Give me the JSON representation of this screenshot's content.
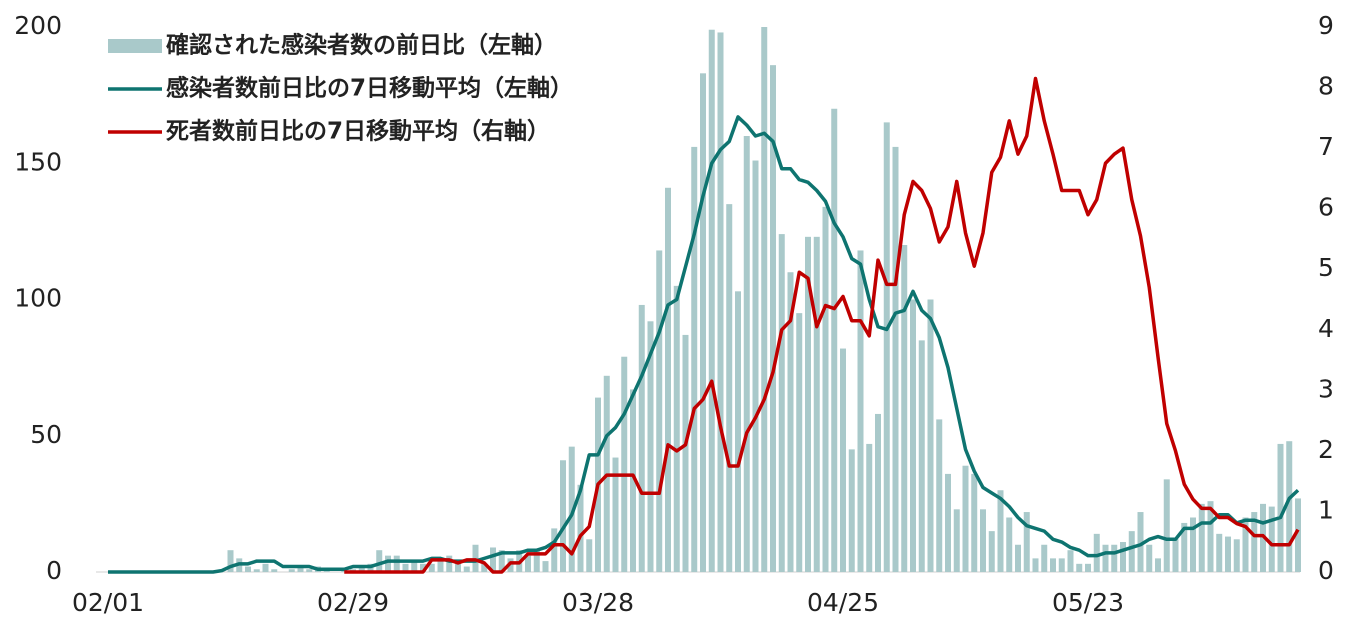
{
  "chart_data": {
    "type": "bar",
    "categories": [
      "02/01",
      null,
      null,
      null,
      null,
      null,
      null,
      null,
      null,
      null,
      null,
      null,
      null,
      null,
      null,
      null,
      null,
      null,
      null,
      null,
      null,
      null,
      null,
      null,
      null,
      null,
      null,
      null,
      "02/29",
      null,
      null,
      null,
      null,
      null,
      null,
      null,
      null,
      null,
      null,
      null,
      null,
      null,
      null,
      null,
      null,
      null,
      null,
      null,
      null,
      null,
      null,
      null,
      null,
      null,
      null,
      null,
      "03/28",
      null,
      null,
      null,
      null,
      null,
      null,
      null,
      null,
      null,
      null,
      null,
      null,
      null,
      null,
      null,
      null,
      null,
      null,
      null,
      null,
      null,
      null,
      null,
      null,
      null,
      null,
      null,
      "04/25",
      null,
      null,
      null,
      null,
      null,
      null,
      null,
      null,
      null,
      null,
      null,
      null,
      null,
      null,
      null,
      null,
      null,
      null,
      null,
      null,
      null,
      null,
      null,
      null,
      null,
      null,
      null,
      "05/23",
      null,
      null,
      null,
      null,
      null,
      null,
      null,
      null,
      null,
      null,
      null,
      null,
      null,
      null,
      null,
      null,
      null,
      null,
      null,
      null,
      null,
      null,
      null,
      null
    ],
    "series": [
      {
        "name": "確認された感染者数の前日比（左軸）",
        "type": "bar",
        "color": "#a9c9ca",
        "values": [
          0,
          0,
          0,
          0,
          0,
          0,
          0,
          0,
          0,
          0,
          0,
          0,
          0,
          0,
          8,
          5,
          2,
          1,
          3,
          1,
          0,
          1,
          2,
          1,
          2,
          1,
          0,
          1,
          1,
          2,
          3,
          8,
          6,
          6,
          3,
          4,
          3,
          3,
          4,
          6,
          3,
          2,
          10,
          3,
          9,
          8,
          5,
          8,
          6,
          8,
          4,
          16,
          41,
          46,
          32,
          12,
          64,
          72,
          42,
          79,
          67,
          98,
          92,
          118,
          141,
          105,
          87,
          156,
          183,
          199,
          198,
          135,
          103,
          160,
          151,
          200,
          186,
          124,
          110,
          95,
          123,
          123,
          134,
          170,
          82,
          45,
          118,
          47,
          58,
          165,
          156,
          120,
          100,
          85,
          100,
          56,
          36,
          23,
          39,
          36,
          23,
          15,
          30,
          20,
          10,
          22,
          5,
          10,
          5,
          5,
          8,
          3,
          3,
          14,
          10,
          10,
          11,
          15,
          22,
          10,
          5,
          34,
          12,
          18,
          20,
          25,
          26,
          14,
          13,
          12,
          20,
          22,
          25,
          24,
          47,
          48,
          27
        ]
      },
      {
        "name": "感染者数前日比の7日移動平均（左軸）",
        "type": "line",
        "color": "#0e7470",
        "values": [
          0,
          0,
          0,
          0,
          0,
          0,
          0,
          0,
          0,
          0,
          0,
          0,
          0,
          0.5,
          2,
          3,
          3,
          4,
          4,
          4,
          2,
          2,
          2,
          2,
          1,
          1,
          1,
          1,
          2,
          2,
          2,
          3,
          4,
          4,
          4,
          4,
          4,
          5,
          5,
          4,
          4,
          4,
          4,
          5,
          6,
          7,
          7,
          7,
          8,
          8,
          9,
          11,
          16,
          21,
          30,
          43,
          43,
          50,
          53,
          58,
          65,
          72,
          80,
          88,
          98,
          100,
          112,
          124,
          138,
          150,
          155,
          158,
          167,
          164,
          160,
          161,
          158,
          148,
          148,
          144,
          143,
          140,
          136,
          128,
          123,
          115,
          113,
          100,
          90,
          89,
          95,
          96,
          103,
          96,
          93,
          86,
          75,
          60,
          45,
          37,
          31,
          29,
          27,
          24,
          20,
          17,
          16,
          15,
          12,
          11,
          9,
          8,
          6,
          6,
          7,
          7,
          8,
          9,
          10,
          12,
          13,
          12,
          12,
          16,
          16,
          18,
          18,
          21,
          21,
          18,
          19,
          19,
          18,
          19,
          20,
          27,
          30
        ]
      },
      {
        "name": "死者数前日比の7日移動平均（右軸）",
        "type": "line",
        "axis": "y2",
        "color": "#c00000",
        "values": [
          null,
          null,
          null,
          null,
          null,
          null,
          null,
          null,
          null,
          null,
          null,
          null,
          null,
          null,
          null,
          null,
          null,
          null,
          null,
          null,
          null,
          null,
          null,
          null,
          null,
          null,
          null,
          0,
          0,
          0,
          0,
          0,
          0,
          0,
          0,
          0,
          0,
          0.2,
          0.2,
          0.2,
          0.15,
          0.2,
          0.2,
          0.15,
          0,
          0,
          0.15,
          0.15,
          0.3,
          0.3,
          0.3,
          0.45,
          0.45,
          0.3,
          0.6,
          0.75,
          1.45,
          1.6,
          1.6,
          1.6,
          1.6,
          1.3,
          1.3,
          1.3,
          2.1,
          2.0,
          2.1,
          2.7,
          2.85,
          3.15,
          2.4,
          1.75,
          1.75,
          2.3,
          2.55,
          2.85,
          3.3,
          4.0,
          4.15,
          4.95,
          4.85,
          4.05,
          4.4,
          4.35,
          4.55,
          4.15,
          4.15,
          3.9,
          5.15,
          4.75,
          4.75,
          5.9,
          6.45,
          6.3,
          6.0,
          5.45,
          5.7,
          6.45,
          5.6,
          5.05,
          5.6,
          6.6,
          6.85,
          7.45,
          6.9,
          7.2,
          8.15,
          7.45,
          6.9,
          6.3,
          6.3,
          6.3,
          5.9,
          6.15,
          6.75,
          6.9,
          7.0,
          6.15,
          5.55,
          4.7,
          3.55,
          2.45,
          2.0,
          1.45,
          1.2,
          1.05,
          1.05,
          0.9,
          0.9,
          0.8,
          0.75,
          0.6,
          0.6,
          0.45,
          0.45,
          0.45,
          0.7
        ]
      }
    ],
    "ylim": [
      0,
      200
    ],
    "yticks": [
      0,
      50,
      100,
      150,
      200
    ],
    "y2lim": [
      0,
      9
    ],
    "y2ticks": [
      0,
      1,
      2,
      3,
      4,
      5,
      6,
      7,
      8,
      9
    ],
    "legend": "upper left"
  }
}
